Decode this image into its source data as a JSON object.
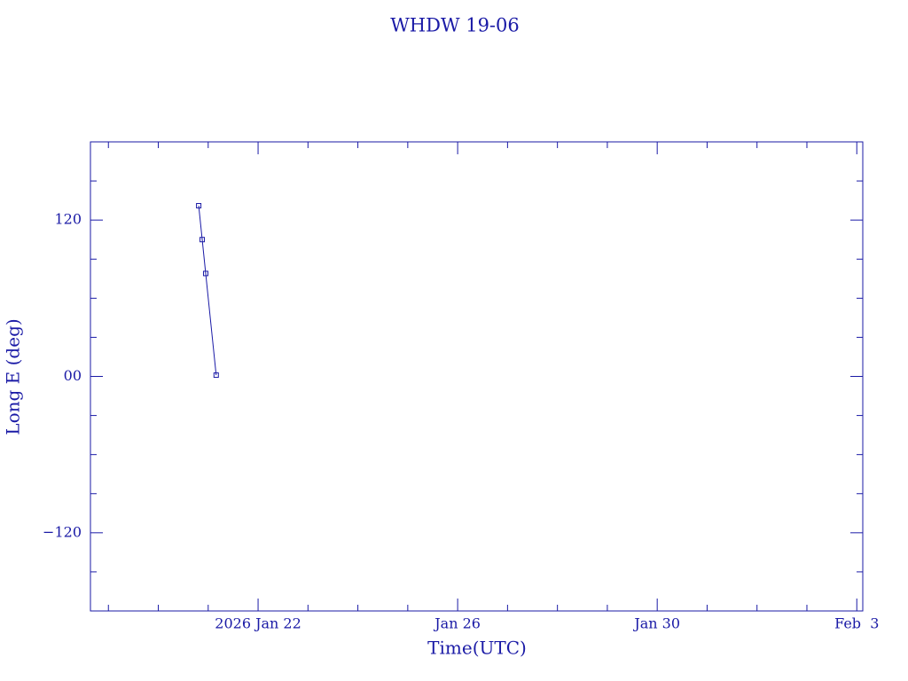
{
  "chart_data": {
    "type": "line",
    "title": "WHDW 19-06",
    "xlabel": "Time(UTC)",
    "ylabel": "Long E (deg)",
    "color": "#1a1aa6",
    "x": [
      20.81,
      20.88,
      20.95,
      21.16
    ],
    "values": [
      131,
      105,
      79,
      1
    ],
    "xlim": [
      18.64,
      34.12
    ],
    "xticks": [
      {
        "value": 22,
        "label": "2026 Jan 22"
      },
      {
        "value": 26,
        "label": "Jan 26"
      },
      {
        "value": 30,
        "label": "Jan 30"
      },
      {
        "value": 34,
        "label": "Feb  3"
      }
    ],
    "xminorticks": [
      19,
      20,
      21,
      23,
      24,
      25,
      27,
      28,
      29,
      31,
      32,
      33
    ],
    "ylim": [
      -180,
      180
    ],
    "yticks": [
      {
        "value": -120,
        "label": "−120"
      },
      {
        "value": 0,
        "label": "00"
      },
      120
    ],
    "yminorticks": [
      -150,
      -90,
      -60,
      -30,
      30,
      60,
      90,
      150
    ]
  }
}
